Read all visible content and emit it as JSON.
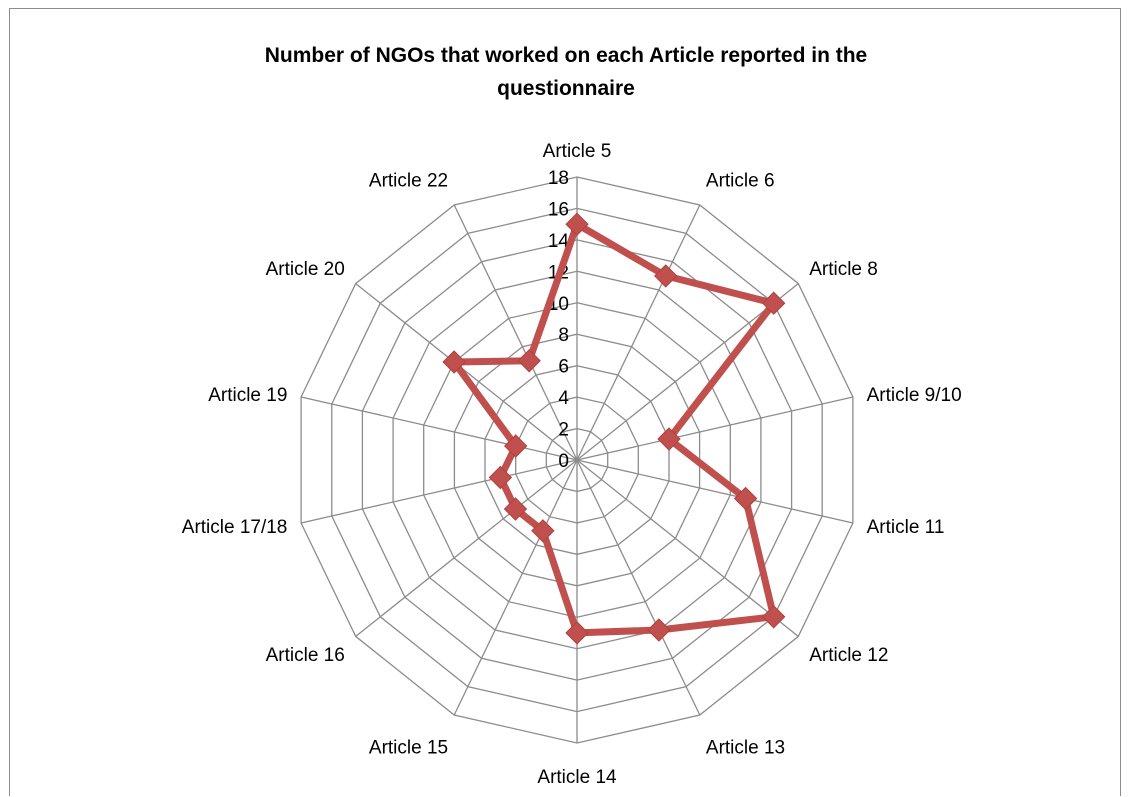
{
  "chart_data": {
    "type": "radar",
    "title": "Number of NGOs that worked on each Article reported in the questionnaire",
    "categories": [
      "Article 5",
      "Article 6",
      "Article 8",
      "Article 9/10",
      "Article 11",
      "Article 12",
      "Article 13",
      "Article 14",
      "Article 15",
      "Article 16",
      "Article 17/18",
      "Article 19",
      "Article 20",
      "Article 22"
    ],
    "series": [
      {
        "values": [
          15,
          13,
          16,
          6,
          11,
          16,
          12,
          11,
          5,
          5,
          5,
          4,
          10,
          7
        ]
      }
    ],
    "rlim": [
      0,
      18
    ],
    "ticks": [
      "0",
      "2",
      "4",
      "6",
      "8",
      "10",
      "12",
      "14",
      "16",
      "18"
    ],
    "grid": true,
    "legend": "none",
    "colors": {
      "series": "#c0504d",
      "grid": "#8c8c8c"
    }
  }
}
